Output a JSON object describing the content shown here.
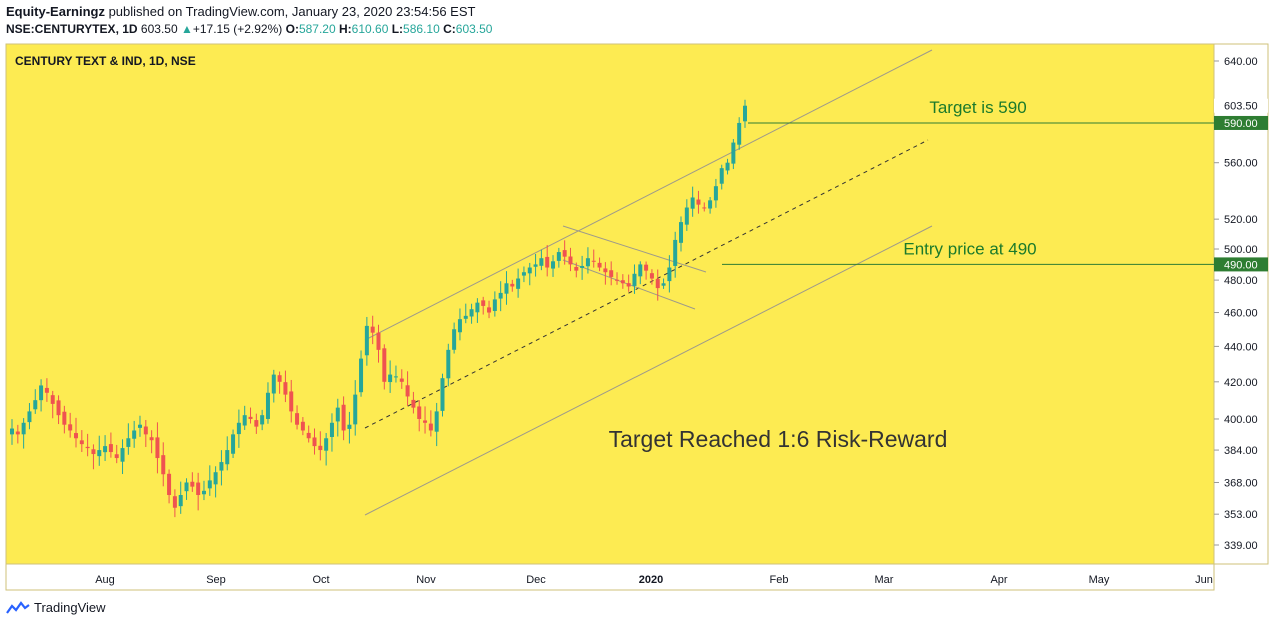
{
  "header": {
    "author": "Equity-Earningz",
    "published": " published on TradingView.com, January 23, 2020 23:54:56 EST",
    "symbol": "NSE:CENTURYTEX, 1D",
    "last": "603.50",
    "change": "+17.15 (+2.92%)",
    "open_label": "O:",
    "open": "587.20",
    "high_label": "H:",
    "high": "610.60",
    "low_label": "L:",
    "low": "586.10",
    "close_label": "C:",
    "close": "603.50"
  },
  "chart_title": "CENTURY TEXT & IND, 1D, NSE",
  "footer": {
    "brand": "TradingView"
  },
  "colors": {
    "background": "#fdeb52",
    "up": "#26a69a",
    "down": "#ef5350",
    "annotation": "#1b7a2b",
    "line": "#2e7d32"
  },
  "chart_data": {
    "type": "candlestick",
    "title": "CENTURY TEXT & IND, 1D, NSE",
    "x_tick_labels": [
      "Aug",
      "Sep",
      "Oct",
      "Nov",
      "Dec",
      "2020",
      "Feb",
      "Mar",
      "Apr",
      "May",
      "Jun"
    ],
    "y_tick_labels": [
      "640.00",
      "560.00",
      "520.00",
      "500.00",
      "480.00",
      "460.00",
      "440.00",
      "420.00",
      "400.00",
      "384.00",
      "368.00",
      "353.00",
      "339.00"
    ],
    "y_tick_values": [
      640,
      560,
      520,
      500,
      480,
      460,
      440,
      420,
      400,
      384,
      368,
      353,
      339
    ],
    "y_scale": "log",
    "ylim": [
      333,
      650
    ],
    "price_markers": [
      {
        "label": "603.50",
        "value": 603.5,
        "style": "last"
      },
      {
        "label": "590.00",
        "value": 590,
        "style": "level"
      },
      {
        "label": "490.00",
        "value": 490,
        "style": "level"
      }
    ],
    "annotations": [
      {
        "text": "Target is 590"
      },
      {
        "text": "Entry price at 490"
      },
      {
        "text": "Target Reached 1:6 Risk-Reward"
      }
    ],
    "series_close": [
      395,
      392,
      398,
      404,
      410,
      418,
      414,
      408,
      402,
      397,
      394,
      390,
      387,
      385,
      382,
      384,
      386,
      383,
      380,
      385,
      390,
      394,
      397,
      392,
      389,
      380,
      372,
      362,
      356,
      362,
      368,
      366,
      362,
      364,
      369,
      373,
      378,
      384,
      392,
      398,
      402,
      400,
      396,
      402,
      414,
      424,
      420,
      413,
      404,
      397,
      394,
      390,
      386,
      384,
      390,
      398,
      406,
      394,
      397,
      413,
      433,
      452,
      448,
      438,
      420,
      424,
      423,
      420,
      412,
      406,
      400,
      398,
      394,
      404,
      422,
      438,
      450,
      456,
      458,
      462,
      466,
      464,
      460,
      468,
      472,
      478,
      476,
      481,
      485,
      488,
      490,
      494,
      488,
      492,
      498,
      495,
      490,
      486,
      489,
      494,
      492,
      488,
      485,
      482,
      480,
      478,
      476,
      484,
      490,
      486,
      481,
      475,
      478,
      488,
      506,
      518,
      528,
      535,
      530,
      528,
      533,
      543,
      556,
      560,
      575,
      590,
      603.5
    ]
  }
}
